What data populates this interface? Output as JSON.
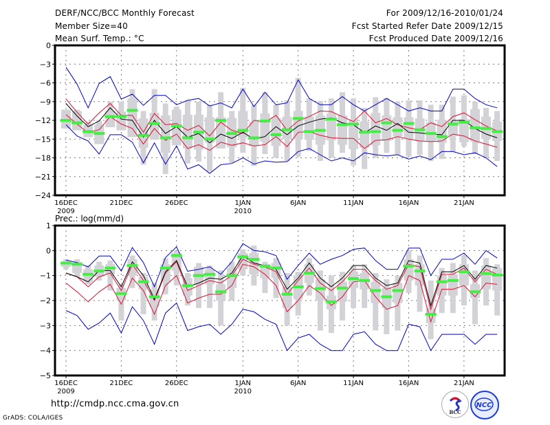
{
  "header": {
    "title": "DERF/NCC/BCC Monthly Forecast",
    "member_size": "Member Size=40",
    "variable1": "Mean Surf. Temp.: °C",
    "period": "For 2009/12/16-2010/01/24",
    "started": "Fcst Started Refer Date 2009/12/15",
    "produced": "Fcst Produced Date 2009/12/16"
  },
  "footer": {
    "url": "http://cmdp.ncc.cma.gov.cn",
    "grads": "GrADS: COLA/IGES",
    "logo1": "BCC",
    "logo2": "NCC"
  },
  "colors": {
    "box": "#d3d3d7",
    "median": "#44ee44",
    "mean": "#000000",
    "inner": "#dd1133",
    "outer": "#0000cc",
    "grid": "#777777"
  },
  "chart_data": [
    {
      "type": "line",
      "title": "Mean Surf. Temp.: °C",
      "ylim": [
        -24,
        0
      ],
      "yticks": [
        0,
        -3,
        -6,
        -9,
        -12,
        -15,
        -18,
        -21,
        -24
      ],
      "xticks": [
        {
          "day": 0,
          "label": "16DEC",
          "sub": "2009"
        },
        {
          "day": 5,
          "label": "21DEC",
          "sub": ""
        },
        {
          "day": 10,
          "label": "26DEC",
          "sub": ""
        },
        {
          "day": 16,
          "label": "1JAN",
          "sub": "2010"
        },
        {
          "day": 21,
          "label": "6JAN",
          "sub": ""
        },
        {
          "day": 26,
          "label": "11JAN",
          "sub": ""
        },
        {
          "day": 31,
          "label": "16JAN",
          "sub": ""
        },
        {
          "day": 36,
          "label": "21JAN",
          "sub": ""
        }
      ],
      "ndays": 40,
      "grid": true,
      "series": [
        {
          "name": "max",
          "values": [
            -3.5,
            -6.2,
            -10,
            -6.1,
            -5.0,
            -8.6,
            -7.8,
            -9.6,
            -8.0,
            -8.0,
            -9.5,
            -8.8,
            -8.5,
            -9.7,
            -9.2,
            -10,
            -7.0,
            -9.8,
            -7.5,
            -9.5,
            -9.2,
            -5.5,
            -8.5,
            -9.5,
            -9.5,
            -8.2,
            -9.5,
            -10.5,
            -9.5,
            -8.5,
            -9.5,
            -10.5,
            -10.0,
            -10.5,
            -10.5,
            -7.0,
            -7.0,
            -8.5,
            -9.5,
            -10.0
          ]
        },
        {
          "name": "upper",
          "values": [
            -8.6,
            -10.7,
            -12.6,
            -10.8,
            -9.3,
            -11.2,
            -11.2,
            -13.9,
            -10.9,
            -12.7,
            -12.5,
            -13.6,
            -12.8,
            -14.5,
            -12.3,
            -13.6,
            -14.1,
            -12.0,
            -12.3,
            -11.2,
            -13.6,
            -12.1,
            -11.4,
            -10.5,
            -10.6,
            -11.4,
            -12.2,
            -10.5,
            -12.4,
            -11.7,
            -12.7,
            -13.2,
            -13.5,
            -12.4,
            -13.0,
            -11.4,
            -10.8,
            -11.9,
            -12.9,
            -13.7
          ]
        },
        {
          "name": "mean",
          "values": [
            -9.3,
            -11.3,
            -13.0,
            -12.1,
            -10.0,
            -11.8,
            -12.0,
            -14.7,
            -12.0,
            -14.1,
            -13.0,
            -14.7,
            -14.1,
            -15.6,
            -14.2,
            -14.9,
            -13.9,
            -15.0,
            -14.6,
            -13.0,
            -14.3,
            -12.9,
            -12.3,
            -11.8,
            -11.6,
            -12.4,
            -12.7,
            -14.0,
            -12.9,
            -13.6,
            -12.5,
            -13.9,
            -14.0,
            -14.2,
            -14.3,
            -12.0,
            -12.0,
            -13.3,
            -14.2,
            -14.8
          ]
        },
        {
          "name": "lower",
          "values": [
            -11.1,
            -12.6,
            -14.0,
            -13.5,
            -11.4,
            -12.6,
            -13.3,
            -15.8,
            -13.3,
            -15.2,
            -14.2,
            -16.5,
            -15.9,
            -16.8,
            -15.5,
            -16.0,
            -15.6,
            -16.1,
            -15.9,
            -14.6,
            -16.2,
            -13.9,
            -13.8,
            -14.4,
            -14.8,
            -14.9,
            -14.9,
            -16.5,
            -15.2,
            -15.1,
            -14.6,
            -15.0,
            -15.3,
            -15.4,
            -15.3,
            -14.2,
            -14.5,
            -15.3,
            -15.8,
            -16.3
          ]
        },
        {
          "name": "min",
          "values": [
            -12.7,
            -14.5,
            -15.3,
            -17.4,
            -14.3,
            -14.3,
            -15.5,
            -18.8,
            -15.6,
            -19.0,
            -16.1,
            -19.8,
            -19.1,
            -20.5,
            -19.1,
            -18.9,
            -18.0,
            -19.0,
            -18.5,
            -18.7,
            -18.6,
            -17.0,
            -16.5,
            -17.5,
            -18.5,
            -18.0,
            -18.5,
            -17.2,
            -17.5,
            -17.7,
            -17.5,
            -18.2,
            -17.7,
            -18.3,
            -17.0,
            -17.0,
            -17.5,
            -17.2,
            -18.0,
            -19.4
          ]
        },
        {
          "name": "median",
          "values": [
            -12.0,
            -12.4,
            -13.8,
            -14.1,
            -11.4,
            -11.4,
            -10.4,
            -14.4,
            -12.5,
            -14.8,
            -12.9,
            -14.8,
            -13.9,
            -15.0,
            -12.0,
            -14.1,
            -13.6,
            -14.8,
            -12.1,
            -14.3,
            -13.5,
            -11.7,
            -13.8,
            -13.6,
            -11.8,
            -12.7,
            -12.6,
            -13.9,
            -13.8,
            -12.4,
            -13.6,
            -12.5,
            -13.5,
            -14.1,
            -14.6,
            -12.6,
            -12.3,
            -13.2,
            -13.3,
            -13.8
          ]
        },
        {
          "name": "box_top",
          "values": [
            -10.3,
            -10.5,
            -12.7,
            -12.7,
            -10.4,
            -10.6,
            -8.5,
            -11.7,
            -10.8,
            -11.2,
            -10.3,
            -11.1,
            -11.1,
            -11.5,
            -11.5,
            -11.6,
            -10.5,
            -12.2,
            -10.9,
            -11.6,
            -11.4,
            -10.5,
            -11.4,
            -11.2,
            -10.9,
            -11.2,
            -11.9,
            -12.2,
            -10.8,
            -11.2,
            -11.5,
            -11.5,
            -11.7,
            -12.3,
            -11.9,
            -12.1,
            -11.8,
            -10.2,
            -11.4,
            -12.2
          ]
        },
        {
          "name": "box_bottom",
          "values": [
            -13.3,
            -13.6,
            -14.7,
            -15.8,
            -13.1,
            -13.6,
            -14.7,
            -16.4,
            -15.1,
            -17.2,
            -16.0,
            -16.5,
            -16.7,
            -15.6,
            -16.5,
            -16.3,
            -14.8,
            -16.1,
            -15.4,
            -16.1,
            -15.0,
            -15.0,
            -15.1,
            -15.9,
            -15.2,
            -15.9,
            -16.6,
            -16.4,
            -16.0,
            -15.3,
            -14.6,
            -15.0,
            -15.3,
            -15.4,
            -15.6,
            -14.5,
            -15.5,
            -15.4,
            -15.0,
            -15.3
          ]
        },
        {
          "name": "whisker_top",
          "values": [
            -10.3,
            -10.3,
            -12.2,
            -12.0,
            -9.0,
            -9.0,
            -7.0,
            -10.5,
            -7.0,
            -9.3,
            -9.8,
            -8.8,
            -9.0,
            -9.5,
            -7.5,
            -10.5,
            -6.8,
            -9.5,
            -7.5,
            -9.5,
            -8.8,
            -5.2,
            -8.5,
            -8.9,
            -8.5,
            -7.5,
            -8.5,
            -10.0,
            -8.3,
            -8.4,
            -9.0,
            -8.8,
            -8.8,
            -9.5,
            -9.5,
            -8.2,
            -8.0,
            -9.0,
            -10.0,
            -10.5
          ]
        },
        {
          "name": "whisker_bottom",
          "values": [
            -13.3,
            -13.6,
            -14.7,
            -15.8,
            -13.1,
            -13.6,
            -14.7,
            -19.1,
            -15.1,
            -20.6,
            -16.0,
            -18.9,
            -18.6,
            -20.2,
            -16.5,
            -18.8,
            -17.2,
            -19.3,
            -17.4,
            -18.0,
            -18.5,
            -17.8,
            -16.9,
            -18.5,
            -18.0,
            -17.2,
            -19.2,
            -19.8,
            -18.0,
            -17.2,
            -17.5,
            -17.8,
            -17.5,
            -18.5,
            -18.2,
            -17.0,
            -16.2,
            -17.4,
            -18.0,
            -18.5
          ]
        }
      ]
    },
    {
      "type": "line",
      "title": "Prec.: log(mm/d)",
      "ylim": [
        -5,
        1
      ],
      "yticks": [
        1,
        0,
        -1,
        -2,
        -3,
        -4,
        -5
      ],
      "xticks": [
        {
          "day": 0,
          "label": "16DEC",
          "sub": "2009"
        },
        {
          "day": 5,
          "label": "21DEC",
          "sub": ""
        },
        {
          "day": 10,
          "label": "26DEC",
          "sub": ""
        },
        {
          "day": 16,
          "label": "1JAN",
          "sub": "2010"
        },
        {
          "day": 21,
          "label": "6JAN",
          "sub": ""
        },
        {
          "day": 26,
          "label": "11JAN",
          "sub": ""
        },
        {
          "day": 31,
          "label": "16JAN",
          "sub": ""
        },
        {
          "day": 36,
          "label": "21JAN",
          "sub": ""
        }
      ],
      "ndays": 40,
      "grid": true,
      "series": [
        {
          "name": "max",
          "values": [
            -0.38,
            -0.48,
            -0.65,
            -0.22,
            -0.22,
            -0.82,
            0.12,
            -0.48,
            -1.45,
            -0.28,
            0.15,
            -0.83,
            -0.75,
            -0.65,
            -0.95,
            -0.45,
            0.28,
            0.0,
            -0.05,
            -0.2,
            -1.15,
            -0.6,
            -0.1,
            -0.55,
            -0.35,
            -0.2,
            0.05,
            0.1,
            -0.4,
            -0.75,
            -0.75,
            0.1,
            0.1,
            -1.0,
            -0.35,
            -0.35,
            -0.1,
            -0.55,
            0.0,
            -0.3
          ]
        },
        {
          "name": "upper",
          "values": [
            -0.9,
            -1.05,
            -1.45,
            -1.05,
            -0.9,
            -1.6,
            -0.55,
            -1.2,
            -2.0,
            -0.9,
            -0.45,
            -1.6,
            -1.4,
            -1.2,
            -1.3,
            -1.0,
            -0.35,
            -0.55,
            -0.65,
            -0.85,
            -1.75,
            -1.2,
            -0.7,
            -1.3,
            -1.6,
            -1.25,
            -0.75,
            -0.75,
            -1.2,
            -1.55,
            -1.4,
            -0.55,
            -0.65,
            -2.35,
            -0.95,
            -0.95,
            -0.7,
            -1.25,
            -0.75,
            -0.95
          ]
        },
        {
          "name": "mean",
          "values": [
            -0.9,
            -1.05,
            -1.25,
            -0.8,
            -0.8,
            -1.45,
            -0.45,
            -1.0,
            -1.95,
            -0.85,
            -0.4,
            -1.45,
            -1.3,
            -1.1,
            -1.15,
            -0.9,
            -0.2,
            -0.5,
            -0.6,
            -0.75,
            -1.55,
            -1.1,
            -0.5,
            -1.1,
            -1.45,
            -1.1,
            -0.6,
            -0.6,
            -1.1,
            -1.4,
            -1.3,
            -0.4,
            -0.5,
            -2.2,
            -0.85,
            -0.85,
            -0.6,
            -1.15,
            -0.6,
            -0.7
          ]
        },
        {
          "name": "lower",
          "values": [
            -1.3,
            -1.65,
            -2.05,
            -1.65,
            -1.35,
            -2.15,
            -1.1,
            -1.6,
            -2.55,
            -1.4,
            -1.0,
            -2.1,
            -1.9,
            -1.75,
            -1.75,
            -1.4,
            -0.55,
            -0.65,
            -0.95,
            -1.4,
            -2.45,
            -2.0,
            -1.4,
            -1.7,
            -2.2,
            -1.85,
            -1.25,
            -1.2,
            -1.85,
            -2.35,
            -2.2,
            -1.0,
            -1.2,
            -2.85,
            -1.55,
            -1.55,
            -1.4,
            -1.85,
            -1.3,
            -1.35
          ]
        },
        {
          "name": "min",
          "values": [
            -2.4,
            -2.6,
            -3.15,
            -2.9,
            -2.5,
            -3.3,
            -2.25,
            -2.8,
            -3.75,
            -2.5,
            -2.1,
            -3.2,
            -3.05,
            -2.95,
            -3.35,
            -2.95,
            -2.35,
            -2.45,
            -2.75,
            -2.95,
            -4.0,
            -3.5,
            -3.35,
            -3.75,
            -4.0,
            -4.0,
            -3.35,
            -3.25,
            -3.75,
            -4.0,
            -4.0,
            -2.95,
            -3.05,
            -4.0,
            -3.35,
            -3.35,
            -3.35,
            -3.75,
            -3.35,
            -3.35
          ]
        },
        {
          "name": "median",
          "values": [
            -0.5,
            -0.55,
            -0.95,
            -0.82,
            -0.7,
            -1.72,
            -0.6,
            -1.25,
            -1.85,
            -0.7,
            -0.2,
            -1.4,
            -1.0,
            -0.95,
            -1.65,
            -1.0,
            -0.25,
            -0.35,
            -0.62,
            -0.7,
            -1.75,
            -1.45,
            -0.9,
            -1.52,
            -2.05,
            -1.5,
            -1.12,
            -1.2,
            -1.6,
            -1.85,
            -1.6,
            -0.62,
            -0.82,
            -2.55,
            -1.25,
            -1.2,
            -0.85,
            -1.65,
            -0.92,
            -0.98
          ]
        },
        {
          "name": "box_top",
          "values": [
            -0.45,
            -0.45,
            -0.75,
            -0.6,
            -0.55,
            -1.5,
            -0.35,
            -1.05,
            -1.55,
            -0.55,
            -0.1,
            -1.1,
            -0.65,
            -0.75,
            -1.35,
            -0.7,
            -0.1,
            -0.1,
            -0.55,
            -0.5,
            -1.45,
            -1.0,
            -0.55,
            -1.15,
            -1.8,
            -1.25,
            -0.85,
            -0.9,
            -1.25,
            -1.5,
            -1.3,
            -0.35,
            -0.55,
            -2.3,
            -1.0,
            -0.95,
            -0.55,
            -1.35,
            -0.6,
            -0.7
          ]
        },
        {
          "name": "box_bottom",
          "values": [
            -0.65,
            -0.9,
            -1.25,
            -1.05,
            -0.95,
            -2.0,
            -1.0,
            -1.55,
            -2.25,
            -1.25,
            -0.8,
            -1.8,
            -1.35,
            -1.35,
            -2.0,
            -1.5,
            -0.75,
            -0.95,
            -1.1,
            -1.1,
            -2.3,
            -1.95,
            -1.3,
            -2.0,
            -2.35,
            -2.05,
            -1.5,
            -1.55,
            -2.1,
            -2.3,
            -2.1,
            -1.2,
            -1.4,
            -2.9,
            -1.8,
            -1.8,
            -1.4,
            -1.9,
            -1.55,
            -1.6
          ]
        },
        {
          "name": "whisker_top",
          "values": [
            -0.35,
            -0.35,
            -0.6,
            -0.45,
            -0.4,
            -1.35,
            -0.2,
            -0.9,
            -1.3,
            -0.3,
            0.0,
            -0.9,
            -0.5,
            -0.6,
            -0.8,
            -0.45,
            0.05,
            0.2,
            -0.45,
            -0.3,
            -0.9,
            -0.85,
            -0.3,
            -0.8,
            -1.0,
            -0.85,
            -0.6,
            -0.55,
            -0.9,
            -1.15,
            -1.0,
            0.0,
            -0.2,
            -1.2,
            -0.7,
            -0.5,
            -0.2,
            -0.8,
            -0.3,
            -0.55
          ]
        },
        {
          "name": "whisker_bottom",
          "values": [
            -0.75,
            -1.05,
            -1.35,
            -1.2,
            -1.6,
            -2.8,
            -1.5,
            -2.55,
            -2.8,
            -1.75,
            -1.4,
            -2.2,
            -2.3,
            -2.3,
            -3.0,
            -2.0,
            -1.0,
            -1.4,
            -1.7,
            -1.9,
            -3.0,
            -2.6,
            -1.8,
            -3.2,
            -3.3,
            -2.8,
            -2.3,
            -2.3,
            -3.2,
            -3.35,
            -3.2,
            -1.7,
            -2.45,
            -3.55,
            -2.5,
            -2.5,
            -2.2,
            -2.95,
            -2.2,
            -2.6
          ]
        }
      ]
    }
  ]
}
